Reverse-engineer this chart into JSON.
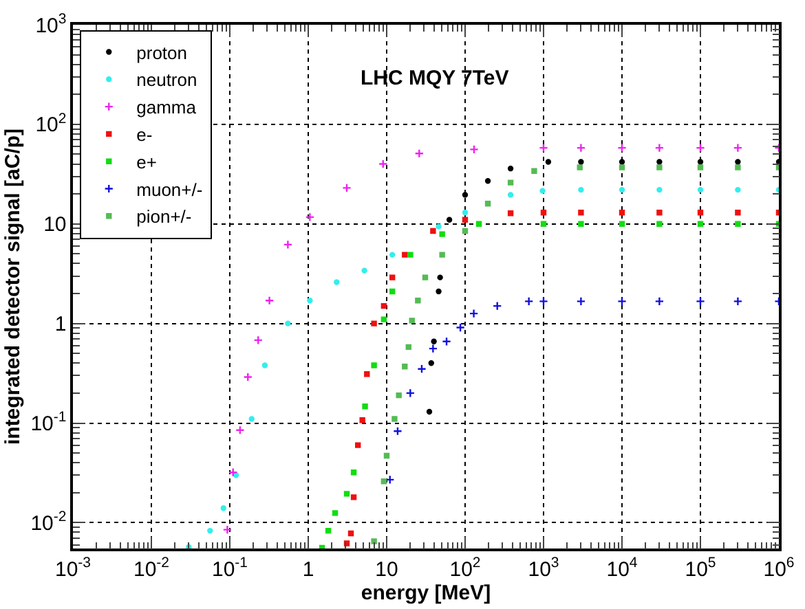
{
  "chart_data": {
    "type": "scatter",
    "title": "LHC MQY 7TeV",
    "xlabel": "energy [MeV]",
    "ylabel": "integrated detector signal [aC/p]",
    "log": "xy",
    "grid": true,
    "legend": "top left",
    "xlim": [
      0.001,
      1000000
    ],
    "xticks": [
      {
        "value": 0.001,
        "label": "10$^{-3}$"
      },
      {
        "value": 0.01,
        "label": "10$^{-2}$"
      },
      {
        "value": 0.1,
        "label": "10$^{-1}$"
      },
      1,
      10,
      {
        "value": 100,
        "label": "10$^{2}$"
      },
      {
        "value": 1000,
        "label": "10$^{3}$"
      },
      {
        "value": 10000,
        "label": "10$^{4}$"
      },
      {
        "value": 100000,
        "label": "10$^{5}$"
      },
      {
        "value": 1000000,
        "label": "10$^{6}$"
      }
    ],
    "ylim": [
      0.0055,
      1000
    ],
    "yticks": [
      {
        "value": 0.01,
        "label": "10$^{-2}$"
      },
      {
        "value": 0.1,
        "label": "10$^{-1}$"
      },
      1,
      10,
      {
        "value": 100,
        "label": "10$^{2}$"
      },
      {
        "value": 1000,
        "label": "10$^{3}$"
      }
    ],
    "series": [
      {
        "name": "proton",
        "color": "#000000",
        "marker": "circle",
        "x": [
          35,
          37,
          40,
          46,
          48,
          63,
          100,
          195,
          380,
          1150,
          3000,
          10000,
          30000,
          100000,
          300000,
          1000000
        ],
        "values": [
          0.13,
          0.4,
          0.66,
          2.1,
          2.9,
          11,
          19.6,
          27,
          36,
          42,
          42,
          42,
          42,
          42,
          42,
          42
        ]
      },
      {
        "name": "neutron",
        "color": "#33eeee",
        "marker": "circle",
        "x": [
          0.03,
          0.056,
          0.083,
          0.12,
          0.19,
          0.28,
          0.55,
          1.05,
          2.3,
          5.2,
          11.8,
          46,
          100,
          380,
          970,
          3000,
          10000,
          30000,
          100000,
          300000,
          1000000
        ],
        "values": [
          0.0057,
          0.0083,
          0.014,
          0.03,
          0.11,
          0.38,
          1,
          1.7,
          2.6,
          3.4,
          4.9,
          9.4,
          13,
          19.6,
          21.5,
          22,
          22,
          22,
          22,
          22,
          22
        ]
      },
      {
        "name": "gamma",
        "color": "#ee22ee",
        "marker": "cross",
        "x": [
          0.093,
          0.11,
          0.135,
          0.17,
          0.23,
          0.32,
          0.55,
          1.05,
          3.1,
          9,
          26,
          130,
          1000,
          3000,
          10000,
          30000,
          100000,
          300000,
          1000000
        ],
        "values": [
          0.0085,
          0.032,
          0.085,
          0.29,
          0.68,
          1.7,
          6.2,
          11.7,
          23,
          40,
          51,
          56,
          58,
          58,
          58,
          58,
          58,
          58,
          58
        ]
      },
      {
        "name": "e-",
        "color": "#ee1111",
        "marker": "square",
        "x": [
          3.1,
          3.5,
          3.8,
          4.3,
          4.9,
          5.6,
          6.9,
          9.2,
          11.8,
          17,
          39,
          100,
          380,
          1000,
          3000,
          10000,
          30000,
          100000,
          300000,
          1000000
        ],
        "values": [
          0.0062,
          0.0078,
          0.018,
          0.06,
          0.107,
          0.31,
          1,
          1.5,
          2.9,
          4.9,
          8.5,
          11,
          12.8,
          13,
          13,
          13,
          13,
          13,
          13,
          13
        ]
      },
      {
        "name": "e+",
        "color": "#11dd11",
        "marker": "square",
        "x": [
          1.5,
          1.8,
          2.2,
          3.1,
          3.8,
          5.3,
          6.9,
          9.2,
          11.8,
          20,
          51,
          150,
          1000,
          3000,
          10000,
          30000,
          100000,
          300000,
          1000000
        ],
        "values": [
          0.0056,
          0.0083,
          0.0125,
          0.0195,
          0.032,
          0.147,
          0.38,
          1.1,
          2.1,
          4.9,
          7.9,
          10,
          10,
          10,
          10,
          10,
          10,
          10,
          10
        ]
      },
      {
        "name": "muon+/-",
        "color": "#1111dd",
        "marker": "cross",
        "x": [
          11,
          13.8,
          20,
          28,
          39,
          58,
          87,
          129,
          257,
          650,
          1000,
          3000,
          10000,
          30000,
          100000,
          300000,
          1000000
        ],
        "values": [
          0.027,
          0.083,
          0.2,
          0.35,
          0.56,
          0.66,
          0.91,
          1.26,
          1.5,
          1.67,
          1.67,
          1.67,
          1.67,
          1.67,
          1.67,
          1.67,
          1.67
        ]
      },
      {
        "name": "pion+/-",
        "color": "#55bb55",
        "marker": "square",
        "x": [
          6.9,
          9.2,
          10,
          12.6,
          14.3,
          17,
          19,
          21,
          25,
          31,
          51,
          100,
          195,
          380,
          760,
          2900,
          10000,
          30000,
          100000,
          300000,
          1000000
        ],
        "values": [
          0.0065,
          0.026,
          0.047,
          0.11,
          0.19,
          0.37,
          0.58,
          1.07,
          1.7,
          2.9,
          4.9,
          8.5,
          16,
          26,
          34,
          37,
          37,
          37,
          37,
          37,
          37
        ]
      }
    ]
  }
}
